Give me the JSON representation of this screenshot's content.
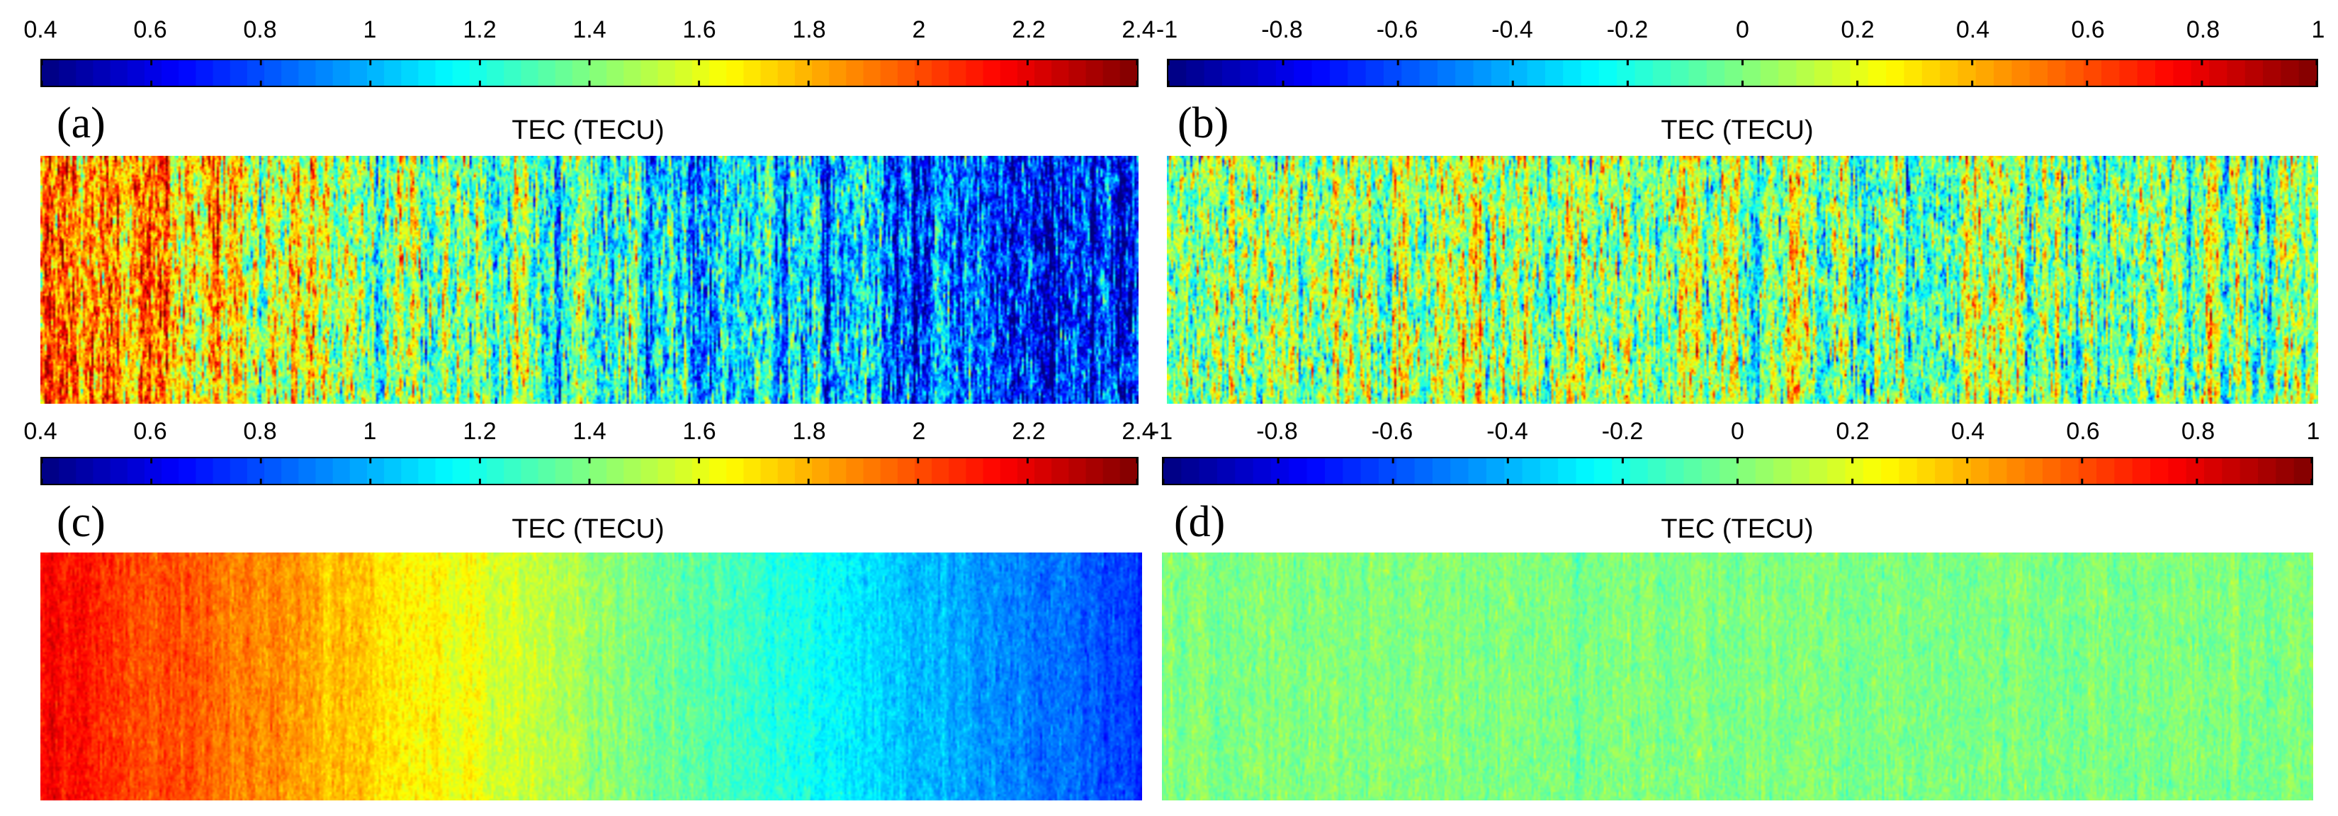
{
  "chart_data": [
    {
      "id": "a",
      "type": "heatmap",
      "panel_label": "(a)",
      "title": "TEC (TECU)",
      "colormap": "jet",
      "clim": [
        0.4,
        2.4
      ],
      "colorbar_ticks": [
        0.4,
        0.6,
        0.8,
        1.0,
        1.2,
        1.4,
        1.6,
        1.8,
        2.0,
        2.2,
        2.4
      ],
      "colorbar_tick_labels": [
        "0.4",
        "0.6",
        "0.8",
        "1",
        "1.2",
        "1.4",
        "1.6",
        "1.8",
        "2",
        "2.2",
        "2.4"
      ],
      "field": {
        "left_mean": 1.9,
        "right_mean": 0.6,
        "noise": 0.62,
        "streak_mix": 0.75
      }
    },
    {
      "id": "b",
      "type": "heatmap",
      "panel_label": "(b)",
      "title": "TEC (TECU)",
      "colormap": "jet",
      "clim": [
        -1,
        1
      ],
      "colorbar_ticks": [
        -1,
        -0.8,
        -0.6,
        -0.4,
        -0.2,
        0,
        0.2,
        0.4,
        0.6,
        0.8,
        1
      ],
      "colorbar_tick_labels": [
        "-1",
        "-0.8",
        "-0.6",
        "-0.4",
        "-0.2",
        "0",
        "0.2",
        "0.4",
        "0.6",
        "0.8",
        "1"
      ],
      "field": {
        "left_mean": 0.05,
        "right_mean": 0.0,
        "noise": 0.62,
        "streak_mix": 0.75
      }
    },
    {
      "id": "c",
      "type": "heatmap",
      "panel_label": "(c)",
      "title": "TEC (TECU)",
      "colormap": "jet",
      "clim": [
        0.4,
        2.4
      ],
      "colorbar_ticks": [
        0.4,
        0.6,
        0.8,
        1.0,
        1.2,
        1.4,
        1.6,
        1.8,
        2.0,
        2.2,
        2.4
      ],
      "colorbar_tick_labels": [
        "0.4",
        "0.6",
        "0.8",
        "1",
        "1.2",
        "1.4",
        "1.6",
        "1.8",
        "2",
        "2.2",
        "2.4"
      ],
      "field": {
        "left_mean": 2.15,
        "right_mean": 0.75,
        "noise": 0.1,
        "streak_mix": 0.6
      }
    },
    {
      "id": "d",
      "type": "heatmap",
      "panel_label": "(d)",
      "title": "TEC (TECU)",
      "colormap": "jet",
      "clim": [
        -1,
        1
      ],
      "colorbar_ticks": [
        -1,
        -0.8,
        -0.6,
        -0.4,
        -0.2,
        0,
        0.2,
        0.4,
        0.6,
        0.8,
        1
      ],
      "colorbar_tick_labels": [
        "-1",
        "-0.8",
        "-0.6",
        "-0.4",
        "-0.2",
        "0",
        "0.2",
        "0.4",
        "0.6",
        "0.8",
        "1"
      ],
      "field": {
        "left_mean": 0.0,
        "right_mean": 0.0,
        "noise": 0.1,
        "streak_mix": 0.6
      }
    }
  ]
}
